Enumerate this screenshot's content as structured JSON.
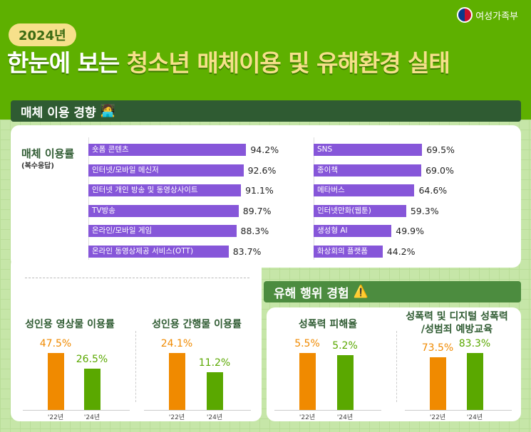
{
  "header": {
    "ministry": "여성가족부",
    "year_badge": "2024년",
    "title_white": "한눈에 보는 ",
    "title_highlight": "청소년 매체이용 및 유해환경 실태"
  },
  "section_media": {
    "title": "매체 이용 경향",
    "label": "매체 이용률",
    "sublabel": "(복수응답)"
  },
  "section_harm": {
    "title": "유해 행위 경험"
  },
  "colors": {
    "purple": "#8656d9",
    "orange": "#f08a00",
    "green": "#5aa800",
    "dark_green": "#2f5b32"
  },
  "chart_data": [
    {
      "type": "bar",
      "orientation": "horizontal",
      "title": "매체 이용률 (복수응답)",
      "categories": [
        "숏폼 콘텐츠",
        "인터넷/모바일 메신저",
        "인터넷 개인 방송 및 동영상사이트",
        "TV방송",
        "온라인/모바일 게임",
        "온라인 동영상제공 서비스(OTT)",
        "SNS",
        "종이책",
        "메타버스",
        "인터넷만화(웹툰)",
        "생성형 AI",
        "화상회의 플랫폼"
      ],
      "values": [
        94.2,
        92.6,
        91.1,
        89.7,
        88.3,
        83.7,
        69.5,
        69.0,
        64.6,
        59.3,
        49.9,
        44.2
      ],
      "labels": [
        "94.2%",
        "92.6%",
        "91.1%",
        "89.7%",
        "88.3%",
        "83.7%",
        "69.5%",
        "69.0%",
        "64.6%",
        "59.3%",
        "49.9%",
        "44.2%"
      ]
    },
    {
      "type": "bar",
      "title": "성인용 영상물 이용률",
      "categories": [
        "'22년",
        "'24년"
      ],
      "values": [
        47.5,
        26.5
      ],
      "labels": [
        "47.5%",
        "26.5%"
      ]
    },
    {
      "type": "bar",
      "title": "성인용 간행물 이용률",
      "categories": [
        "'22년",
        "'24년"
      ],
      "values": [
        24.1,
        11.2
      ],
      "labels": [
        "24.1%",
        "11.2%"
      ]
    },
    {
      "type": "bar",
      "title": "성폭력 피해율",
      "categories": [
        "'22년",
        "'24년"
      ],
      "values": [
        5.5,
        5.2
      ],
      "labels": [
        "5.5%",
        "5.2%"
      ]
    },
    {
      "type": "bar",
      "title": "성폭력 및 디지털 성폭력\n/성범죄 예방교육",
      "categories": [
        "'22년",
        "'24년"
      ],
      "values": [
        73.5,
        83.3
      ],
      "labels": [
        "73.5%",
        "83.3%"
      ]
    }
  ]
}
